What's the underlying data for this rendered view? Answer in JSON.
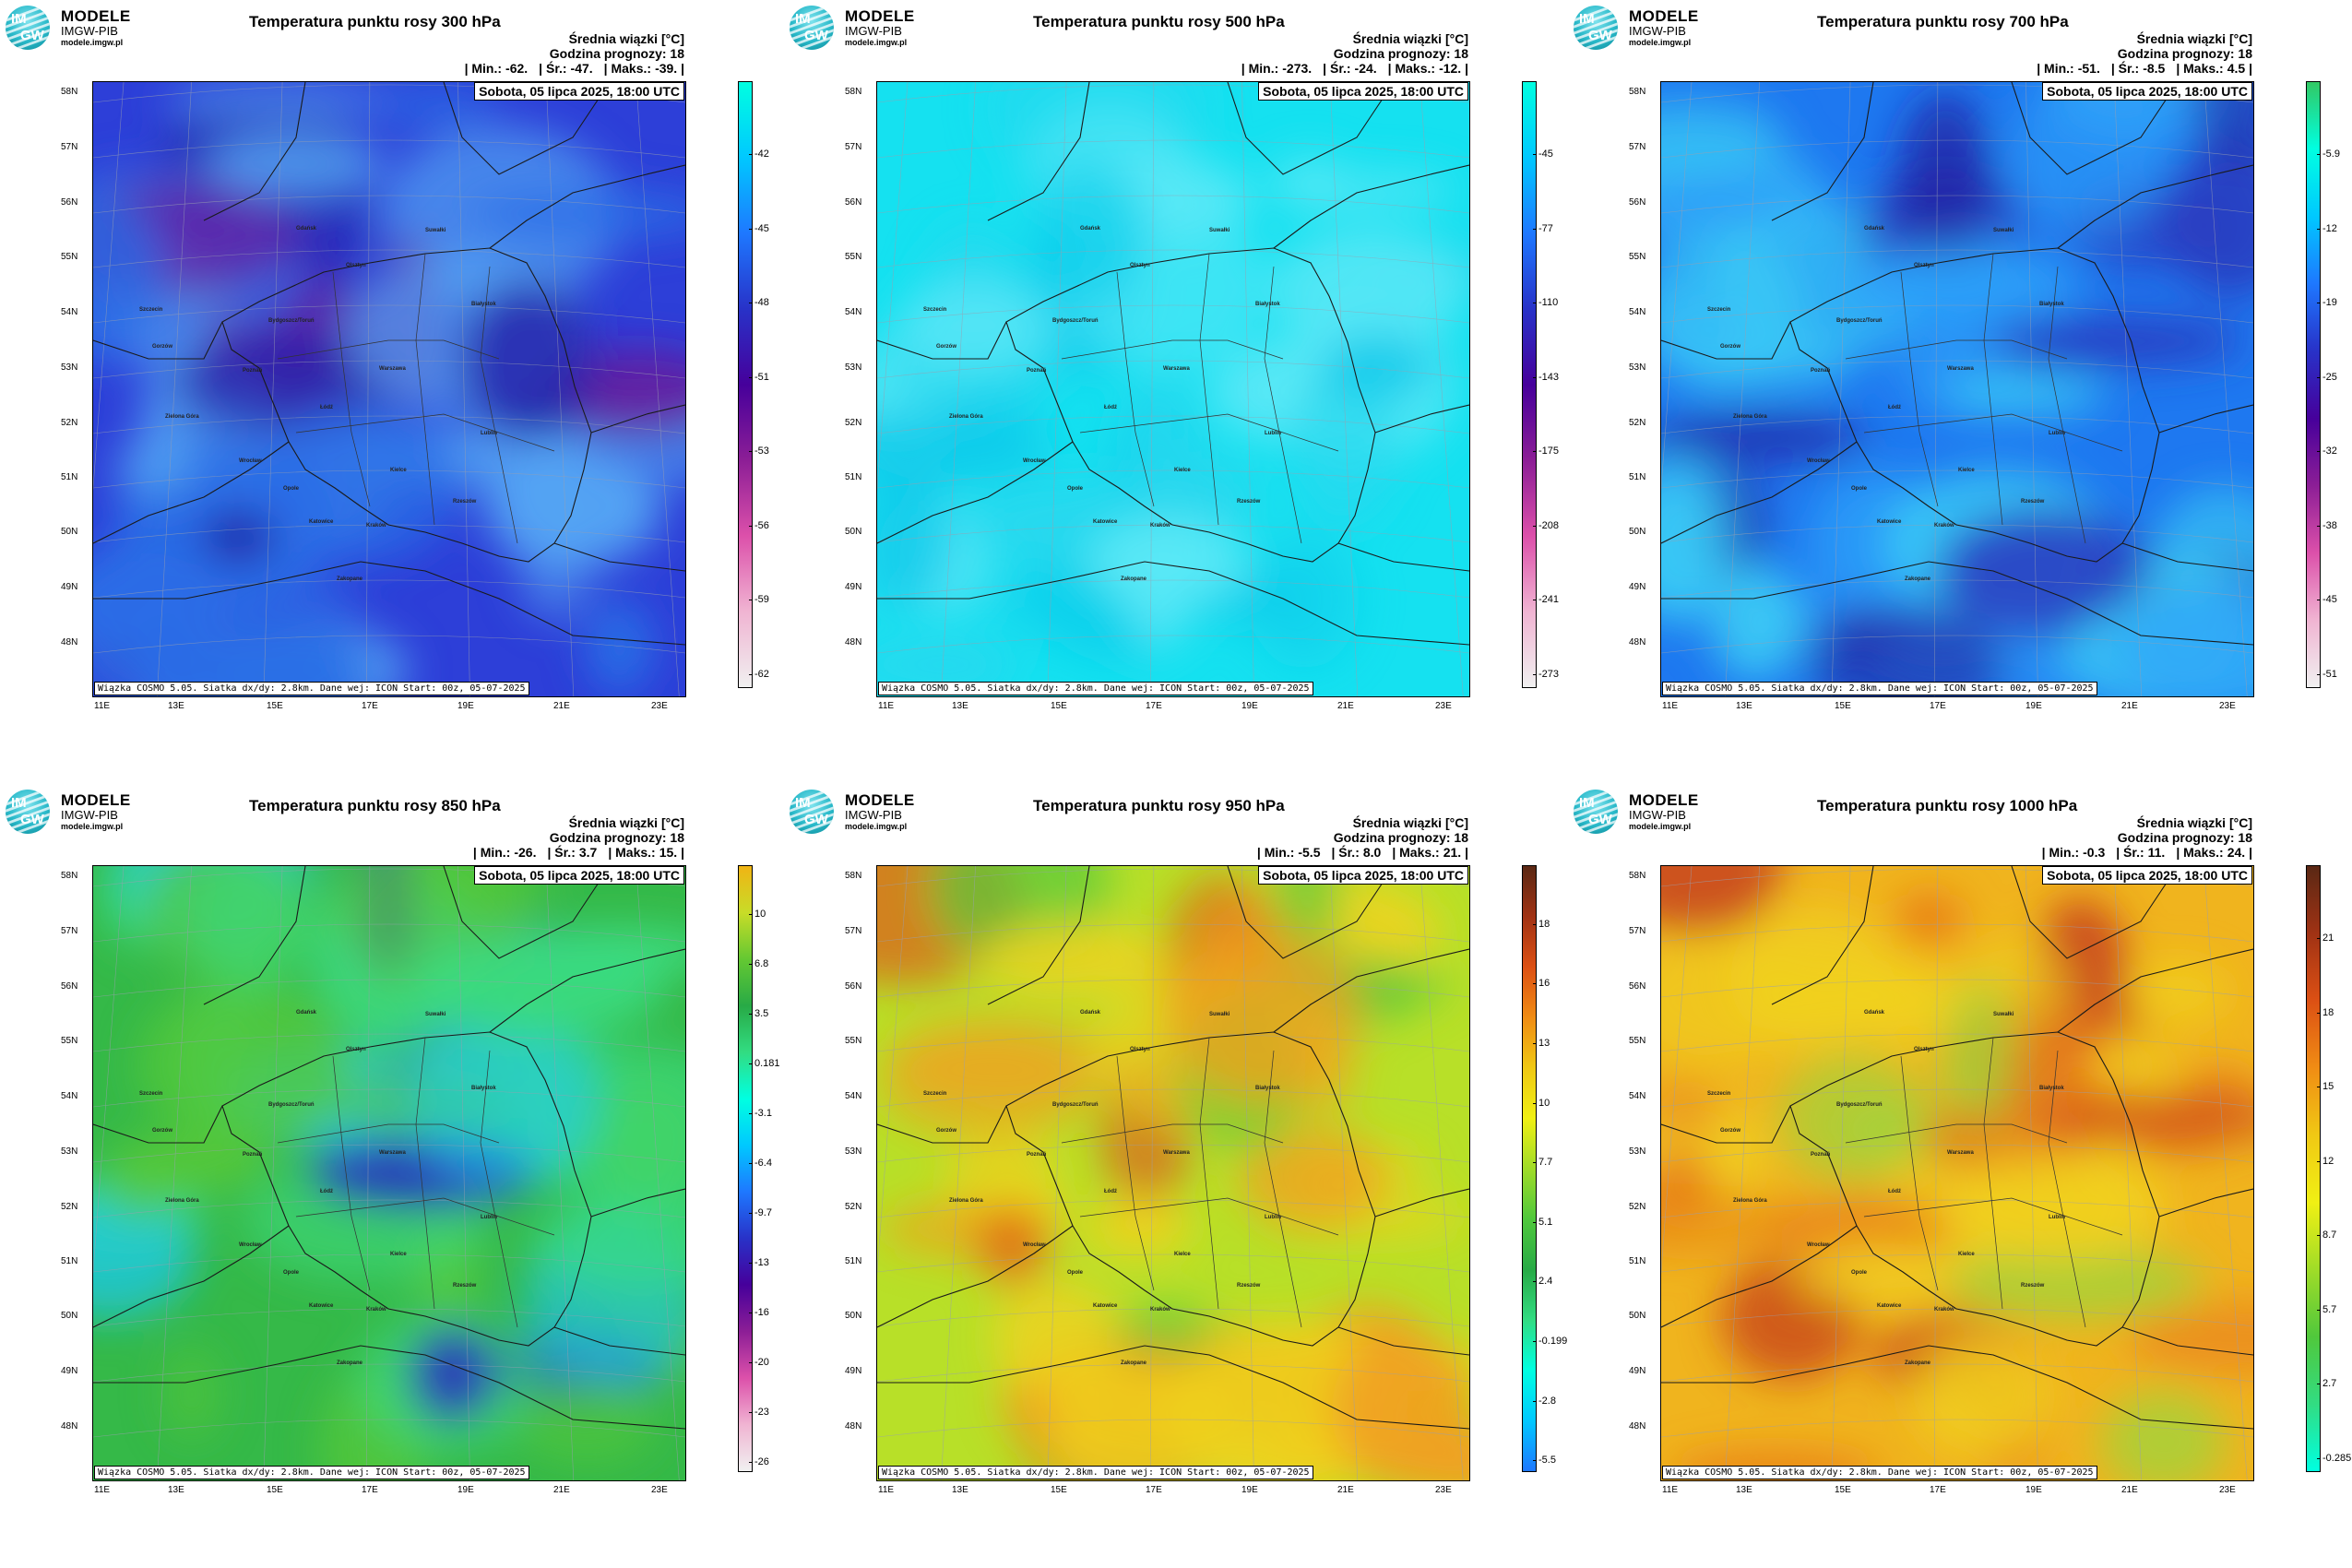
{
  "logo": {
    "line1": "MODELE",
    "line2": "IMGW-PIB",
    "line3": "modele.imgw.pl",
    "icon": "imgw-logo-icon",
    "icon_text_top": "IM",
    "icon_text_bottom": "GW"
  },
  "common": {
    "subtitle1": "Średnia wiązki [°C]",
    "subtitle2": "Godzina prognozy: 18",
    "date": "Sobota, 05 lipca 2025, 18:00 UTC",
    "footer": "Wiązka COSMO 5.05. Siatka dx/dy: 2.8km. Dane wej: ICON Start: 00z, 05-07-2025",
    "lat_labels": [
      "58N",
      "57N",
      "56N",
      "55N",
      "54N",
      "53N",
      "52N",
      "51N",
      "50N",
      "49N",
      "48N"
    ],
    "lon_labels": [
      "11E",
      "13E",
      "15E",
      "17E",
      "19E",
      "21E",
      "23E"
    ],
    "cities": [
      "Gdańsk",
      "Suwałki",
      "Olsztyn",
      "Szczecin",
      "Białystok",
      "Bydgoszcz/Toruń",
      "Gorzów",
      "Poznań",
      "Warszawa",
      "Zielona Góra",
      "Łódź",
      "Lublin",
      "Wrocław",
      "Kielce",
      "Opole",
      "Rzeszów",
      "Katowice",
      "Kraków",
      "Zakopane"
    ]
  },
  "panels": [
    {
      "title": "Temperatura punktu rosy 300 hPa",
      "min_label": "| Min.:",
      "min": "-62.",
      "avg_label": "| Śr.:",
      "avg": "-47.",
      "max_label": "| Maks.:",
      "max": "-39. |",
      "colorbar_ticks": [
        "-42",
        "-45",
        "-48",
        "-51",
        "-53",
        "-56",
        "-59",
        "-62"
      ],
      "colorbar_colors": [
        "#00ffe1",
        "#00c8ff",
        "#1e78ff",
        "#2832c8",
        "#46009b",
        "#8c1e96",
        "#dc50aa",
        "#f0b4d2",
        "#f0f0f0"
      ],
      "field_colors": {
        "base": "#2d3fd8",
        "mid": "#2a6ee6",
        "hi": "#55a8f4",
        "lo": "#6a1a9a",
        "dark": "#2421a8"
      }
    },
    {
      "title": "Temperatura punktu rosy 500 hPa",
      "min_label": "| Min.:",
      "min": "-273.",
      "avg_label": "| Śr.:",
      "avg": "-24.",
      "max_label": "| Maks.:",
      "max": "-12. |",
      "colorbar_ticks": [
        "-45",
        "-77",
        "-110",
        "-143",
        "-175",
        "-208",
        "-241",
        "-273"
      ],
      "colorbar_colors": [
        "#00ffe1",
        "#00c8ff",
        "#1e78ff",
        "#2832c8",
        "#46009b",
        "#8c1e96",
        "#dc50aa",
        "#f0b4d2",
        "#f0f0f0"
      ],
      "field_colors": {
        "base": "#15e1f0",
        "mid": "#2ad8ee",
        "hi": "#5ae8f6",
        "lo": "#12c9ea",
        "dark": "#0fd0ec"
      }
    },
    {
      "title": "Temperatura punktu rosy 700 hPa",
      "min_label": "| Min.:",
      "min": "-51.",
      "avg_label": "| Śr.:",
      "avg": "-8.5",
      "max_label": "| Maks.:",
      "max": "4.5 |",
      "colorbar_ticks": [
        "-5.9",
        "-12",
        "-19",
        "-25",
        "-32",
        "-38",
        "-45",
        "-51"
      ],
      "colorbar_colors": [
        "#32c864",
        "#00ffe1",
        "#00c8ff",
        "#1e78ff",
        "#2832c8",
        "#46009b",
        "#8c1e96",
        "#dc50aa",
        "#f0b4d2",
        "#f0f0f0"
      ],
      "field_colors": {
        "base": "#1e78f0",
        "mid": "#2da0f8",
        "hi": "#3cd0f6",
        "lo": "#2a3cc0",
        "dark": "#231d9c"
      }
    },
    {
      "title": "Temperatura punktu rosy 850 hPa",
      "min_label": "| Min.:",
      "min": "-26.",
      "avg_label": "| Śr.:",
      "avg": "3.7",
      "max_label": "| Maks.:",
      "max": "15. |",
      "colorbar_ticks": [
        "10",
        "6.8",
        "3.5",
        "0.181",
        "-3.1",
        "-6.4",
        "-9.7",
        "-13",
        "-16",
        "-20",
        "-23",
        "-26"
      ],
      "colorbar_colors": [
        "#f0b414",
        "#c8dc28",
        "#64c832",
        "#28aa46",
        "#32dc82",
        "#00ffe1",
        "#00c8ff",
        "#1e78ff",
        "#2832c8",
        "#46009b",
        "#8c1e96",
        "#dc50aa",
        "#f0b4d2",
        "#f0f0f0"
      ],
      "field_colors": {
        "base": "#35b948",
        "mid": "#55c83a",
        "hi": "#3cdc82",
        "lo": "#1ec8f0",
        "dark": "#2830c0"
      }
    },
    {
      "title": "Temperatura punktu rosy 950 hPa",
      "min_label": "| Min.:",
      "min": "-5.5",
      "avg_label": "| Śr.:",
      "avg": "8.0",
      "max_label": "| Maks.:",
      "max": "21. |",
      "colorbar_ticks": [
        "18",
        "16",
        "13",
        "10",
        "7.7",
        "5.1",
        "2.4",
        "-0.199",
        "-2.8",
        "-5.5"
      ],
      "colorbar_colors": [
        "#5a2814",
        "#a03214",
        "#dc5014",
        "#f08c14",
        "#f0c814",
        "#f0f014",
        "#a0dc28",
        "#50c83c",
        "#28aa46",
        "#32dc82",
        "#00ffe1",
        "#00c8ff",
        "#1e78ff"
      ],
      "field_colors": {
        "base": "#b8e028",
        "mid": "#f0d21e",
        "hi": "#f0a020",
        "lo": "#5ac83c",
        "dark": "#dc5a18"
      }
    },
    {
      "title": "Temperatura punktu rosy 1000 hPa",
      "min_label": "| Min.:",
      "min": "-0.3",
      "avg_label": "| Śr.:",
      "avg": "11.",
      "max_label": "| Maks.:",
      "max": "24. |",
      "colorbar_ticks": [
        "21",
        "18",
        "15",
        "12",
        "8.7",
        "5.7",
        "2.7",
        "-0.285"
      ],
      "colorbar_colors": [
        "#5a2814",
        "#a03214",
        "#dc5014",
        "#f08c14",
        "#f0c814",
        "#f0f014",
        "#a0dc28",
        "#50c83c",
        "#32dc82",
        "#00ffe1"
      ],
      "field_colors": {
        "base": "#f0b41e",
        "mid": "#f0d21e",
        "hi": "#e8781a",
        "lo": "#a0d43c",
        "dark": "#c8461c"
      }
    }
  ]
}
